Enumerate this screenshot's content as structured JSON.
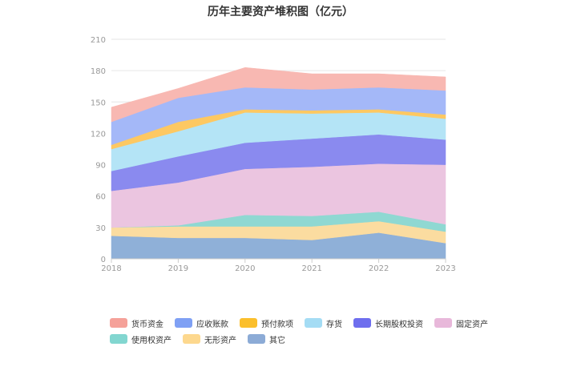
{
  "chart_data": {
    "type": "area",
    "title": "历年主要资产堆积图（亿元）",
    "x": [
      "2018",
      "2019",
      "2020",
      "2021",
      "2022",
      "2023"
    ],
    "ylim": [
      0,
      210
    ],
    "yticks": [
      0,
      30,
      60,
      90,
      120,
      150,
      180,
      210
    ],
    "grid": true,
    "legend_position": "bottom",
    "series": [
      {
        "name": "其它",
        "color": "#8fb0d8",
        "values": [
          22,
          20,
          20,
          18,
          25,
          15
        ]
      },
      {
        "name": "无形资产",
        "color": "#fbdca0",
        "values": [
          8,
          11,
          11,
          13,
          11,
          11
        ]
      },
      {
        "name": "使用权资产",
        "color": "#8fd8d2",
        "values": [
          0,
          1,
          11,
          10,
          9,
          7
        ]
      },
      {
        "name": "固定资产",
        "color": "#ebc5e0",
        "values": [
          35,
          41,
          44,
          47,
          46,
          57
        ]
      },
      {
        "name": "长期股权投资",
        "color": "#8a8aef",
        "values": [
          19,
          25,
          25,
          27,
          28,
          24
        ]
      },
      {
        "name": "存货",
        "color": "#b4e4f6",
        "values": [
          21,
          24,
          29,
          24,
          21,
          20
        ]
      },
      {
        "name": "预付款项",
        "color": "#fdc862",
        "values": [
          4,
          9,
          3,
          3,
          3,
          4
        ]
      },
      {
        "name": "应收账款",
        "color": "#a4b8f8",
        "values": [
          22,
          23,
          21,
          20,
          21,
          23
        ]
      },
      {
        "name": "货币资金",
        "color": "#f8b8b2",
        "values": [
          14,
          9,
          19,
          15,
          13,
          13
        ]
      }
    ],
    "legend_rows": [
      [
        {
          "name": "货币资金",
          "color": "#f5a199"
        },
        {
          "name": "应收账款",
          "color": "#7fa0f4"
        },
        {
          "name": "预付款项",
          "color": "#fbbf2c"
        },
        {
          "name": "存货",
          "color": "#a4dcf4"
        },
        {
          "name": "长期股权投资",
          "color": "#6e6eee"
        },
        {
          "name": "固定资产",
          "color": "#e8b8da"
        }
      ],
      [
        {
          "name": "使用权资产",
          "color": "#82d6d0"
        },
        {
          "name": "无形资产",
          "color": "#fdd88e"
        },
        {
          "name": "其它",
          "color": "#8cabd6"
        }
      ]
    ]
  }
}
